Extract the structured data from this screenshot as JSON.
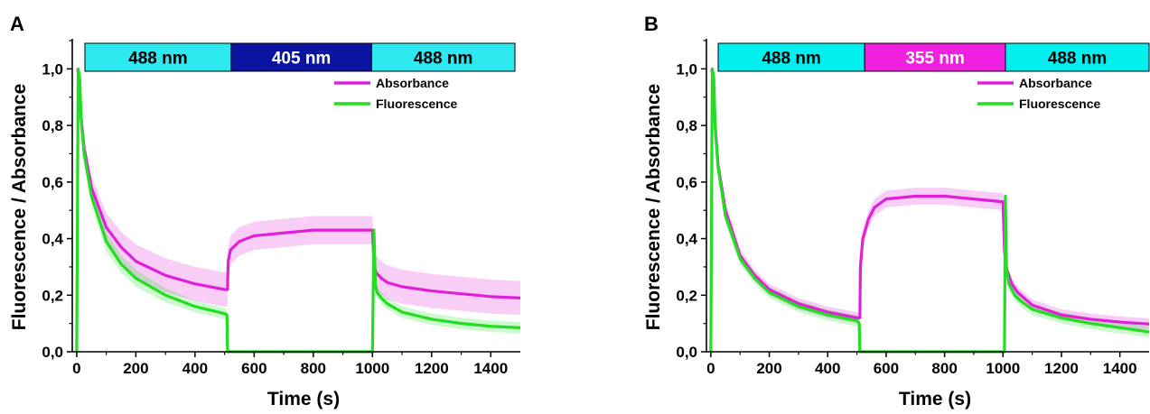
{
  "chart_data": [
    {
      "panel": "A",
      "type": "line",
      "xlabel": "Time (s)",
      "ylabel": "Fluorescence / Absorbance",
      "xlim": [
        -15,
        1500
      ],
      "ylim": [
        0,
        1.1
      ],
      "xticks": [
        0,
        200,
        400,
        600,
        800,
        1000,
        1200,
        1400
      ],
      "xtick_labels": [
        "0",
        "200",
        "400",
        "600",
        "800",
        "1000",
        "1200",
        "1400"
      ],
      "yticks": [
        0,
        0.2,
        0.4,
        0.6,
        0.8,
        1.0
      ],
      "ytick_labels": [
        "0,0",
        "0,2",
        "0,4",
        "0,6",
        "0,8",
        "1,0"
      ],
      "legend_position": "top-right",
      "illumination": [
        {
          "label": "488 nm",
          "start": 0,
          "end": 510,
          "color": "#2EE8F0",
          "text_color": "#000000"
        },
        {
          "label": "405 nm",
          "start": 510,
          "end": 1000,
          "color": "#0A14A0",
          "text_color": "#FFFFFF"
        },
        {
          "label": "488 nm",
          "start": 1000,
          "end": 1500,
          "color": "#2EE8F0",
          "text_color": "#000000"
        }
      ],
      "series": [
        {
          "name": "Absorbance",
          "color": "#E020D8",
          "x": [
            3,
            8,
            15,
            25,
            50,
            100,
            150,
            200,
            300,
            400,
            500,
            510,
            512,
            520,
            550,
            600,
            700,
            800,
            900,
            995,
            1000,
            1005,
            1012,
            1030,
            1050,
            1100,
            1200,
            1300,
            1400,
            1500
          ],
          "y": [
            1.0,
            0.97,
            0.83,
            0.72,
            0.58,
            0.44,
            0.37,
            0.32,
            0.27,
            0.24,
            0.22,
            0.22,
            0.32,
            0.36,
            0.39,
            0.41,
            0.42,
            0.43,
            0.43,
            0.43,
            0.43,
            0.31,
            0.28,
            0.26,
            0.245,
            0.23,
            0.215,
            0.205,
            0.195,
            0.19
          ],
          "err": [
            0.0,
            0.0,
            0.02,
            0.03,
            0.04,
            0.05,
            0.055,
            0.06,
            0.06,
            0.06,
            0.06,
            0.06,
            0.05,
            0.05,
            0.05,
            0.05,
            0.05,
            0.05,
            0.05,
            0.05,
            0.05,
            0.06,
            0.06,
            0.06,
            0.06,
            0.06,
            0.06,
            0.06,
            0.06,
            0.06
          ]
        },
        {
          "name": "Fluorescence",
          "color": "#22DD22",
          "x": [
            0,
            5,
            10,
            15,
            25,
            50,
            100,
            150,
            200,
            300,
            400,
            500,
            508,
            510,
            520,
            800,
            1000,
            1005,
            1010,
            1015,
            1030,
            1050,
            1100,
            1200,
            1300,
            1400,
            1500
          ],
          "y": [
            0.0,
            1.0,
            0.97,
            0.82,
            0.7,
            0.55,
            0.39,
            0.31,
            0.26,
            0.2,
            0.16,
            0.135,
            0.13,
            0.0,
            0.0,
            0.0,
            0.0,
            0.43,
            0.24,
            0.21,
            0.19,
            0.17,
            0.14,
            0.115,
            0.1,
            0.09,
            0.085
          ],
          "err": [
            0.0,
            0.0,
            0.0,
            0.02,
            0.03,
            0.035,
            0.035,
            0.03,
            0.03,
            0.025,
            0.02,
            0.02,
            0.02,
            0.0,
            0.0,
            0.0,
            0.0,
            0.0,
            0.02,
            0.02,
            0.02,
            0.02,
            0.02,
            0.02,
            0.02,
            0.02,
            0.02
          ]
        }
      ]
    },
    {
      "panel": "B",
      "type": "line",
      "xlabel": "Time (s)",
      "ylabel": "Fluorescence / Absorbance",
      "xlim": [
        -15,
        1500
      ],
      "ylim": [
        0,
        1.1
      ],
      "xticks": [
        0,
        200,
        400,
        600,
        800,
        1000,
        1200,
        1400
      ],
      "xtick_labels": [
        "0",
        "200",
        "400",
        "600",
        "800",
        "1000",
        "1200",
        "1400"
      ],
      "yticks": [
        0,
        0.2,
        0.4,
        0.6,
        0.8,
        1.0
      ],
      "ytick_labels": [
        "0,0",
        "0,2",
        "0,4",
        "0,6",
        "0,8",
        "1,0"
      ],
      "legend_position": "top-right",
      "illumination": [
        {
          "label": "488 nm",
          "start": 0,
          "end": 510,
          "color": "#00F0F0",
          "text_color": "#000000"
        },
        {
          "label": "355 nm",
          "start": 510,
          "end": 1000,
          "color": "#F020E0",
          "text_color": "#FFFFFF"
        },
        {
          "label": "488 nm",
          "start": 1000,
          "end": 1500,
          "color": "#00F0F0",
          "text_color": "#000000"
        }
      ],
      "series": [
        {
          "name": "Absorbance",
          "color": "#E020D8",
          "x": [
            3,
            8,
            15,
            25,
            50,
            100,
            150,
            200,
            300,
            400,
            500,
            510,
            512,
            520,
            540,
            560,
            600,
            700,
            800,
            900,
            1000,
            1005,
            1010,
            1030,
            1050,
            1100,
            1200,
            1300,
            1400,
            1500
          ],
          "y": [
            1.0,
            0.97,
            0.8,
            0.66,
            0.5,
            0.34,
            0.27,
            0.22,
            0.17,
            0.14,
            0.12,
            0.12,
            0.3,
            0.4,
            0.47,
            0.51,
            0.54,
            0.55,
            0.55,
            0.54,
            0.53,
            0.36,
            0.3,
            0.24,
            0.21,
            0.165,
            0.13,
            0.115,
            0.105,
            0.098
          ],
          "err": [
            0.0,
            0.0,
            0.02,
            0.02,
            0.025,
            0.025,
            0.02,
            0.02,
            0.02,
            0.02,
            0.02,
            0.02,
            0.03,
            0.03,
            0.03,
            0.03,
            0.03,
            0.03,
            0.03,
            0.03,
            0.03,
            0.02,
            0.02,
            0.02,
            0.02,
            0.02,
            0.02,
            0.02,
            0.02,
            0.02
          ]
        },
        {
          "name": "Fluorescence",
          "color": "#22DD22",
          "x": [
            0,
            5,
            10,
            15,
            25,
            50,
            100,
            150,
            200,
            300,
            400,
            500,
            508,
            510,
            520,
            800,
            1005,
            1008,
            1012,
            1020,
            1040,
            1060,
            1100,
            1200,
            1300,
            1400,
            1500
          ],
          "y": [
            0.0,
            1.0,
            0.97,
            0.79,
            0.65,
            0.48,
            0.33,
            0.26,
            0.21,
            0.16,
            0.13,
            0.11,
            0.1,
            0.0,
            0.0,
            0.0,
            0.0,
            0.55,
            0.3,
            0.24,
            0.2,
            0.18,
            0.15,
            0.12,
            0.1,
            0.085,
            0.07
          ],
          "err": [
            0.0,
            0.0,
            0.0,
            0.02,
            0.02,
            0.025,
            0.02,
            0.02,
            0.02,
            0.02,
            0.02,
            0.02,
            0.02,
            0.0,
            0.0,
            0.0,
            0.0,
            0.0,
            0.02,
            0.02,
            0.02,
            0.02,
            0.02,
            0.02,
            0.02,
            0.02,
            0.02
          ]
        }
      ]
    }
  ]
}
